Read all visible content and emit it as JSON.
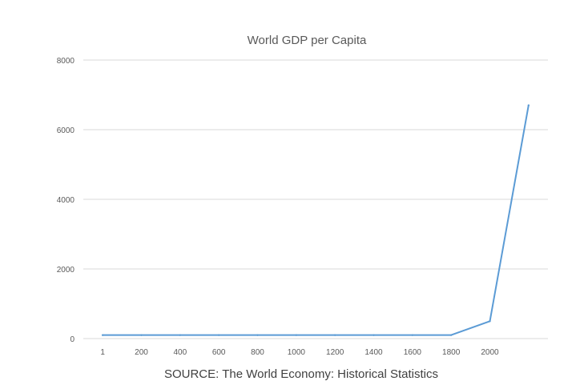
{
  "chart_data": {
    "type": "line",
    "title": "World GDP per Capita",
    "xlabel": "",
    "ylabel": "",
    "categories": [
      "1",
      "200",
      "400",
      "600",
      "800",
      "1000",
      "1200",
      "1400",
      "1600",
      "1800",
      "2000",
      ""
    ],
    "series": [
      {
        "name": "World GDP per Capita",
        "values": [
          100,
          100,
          100,
          100,
          100,
          100,
          100,
          100,
          100,
          100,
          500,
          6700
        ],
        "color": "#5b9bd5"
      }
    ],
    "ylim": [
      0,
      8000
    ],
    "yticks": [
      0,
      2000,
      4000,
      6000,
      8000
    ],
    "grid": true,
    "legend": "none"
  },
  "footer": {
    "source": "SOURCE: The World Economy: Historical Statistics"
  },
  "colors": {
    "gridline": "#d9d9d9",
    "text": "#595959"
  }
}
